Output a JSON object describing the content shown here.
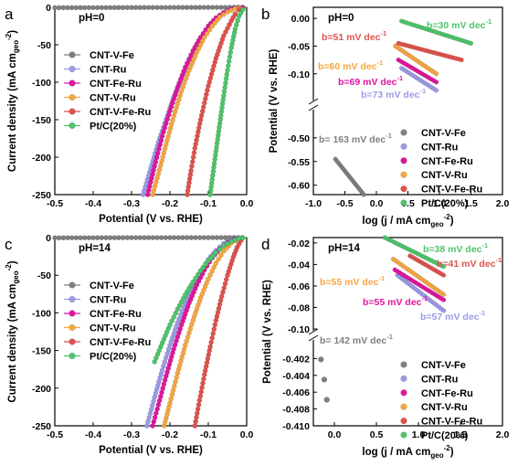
{
  "figure": {
    "series_names": [
      "CNT-V-Fe",
      "CNT-Ru",
      "CNT-Fe-Ru",
      "CNT-V-Ru",
      "CNT-V-Fe-Ru",
      "Pt/C(20%)"
    ],
    "colors": [
      "#7f7f7f",
      "#9b9be8",
      "#e0169e",
      "#f5a742",
      "#e0524c",
      "#4fc46b"
    ]
  },
  "chart_data": [
    {
      "panel": "a",
      "type": "line",
      "annotation": "pH=0",
      "xlabel": "Potential  (V vs. RHE)",
      "ylabel": "Current density (mA cm",
      "ylabel_sub": "geo",
      "ylabel_tail": "-2",
      "ylabel_end": ")",
      "xlim": [
        -0.5,
        0.0
      ],
      "ylim": [
        -250,
        0
      ],
      "xticks": [
        "-0.5",
        "-0.4",
        "-0.3",
        "-0.2",
        "-0.1",
        "0.0"
      ],
      "yticks": [
        "-250",
        "-200",
        "-150",
        "-100",
        "-50",
        "0"
      ],
      "xtick_values": [
        -0.5,
        -0.4,
        -0.3,
        -0.2,
        -0.1,
        0.0
      ],
      "ytick_values": [
        -250,
        -200,
        -150,
        -100,
        -50,
        0
      ],
      "series": [
        {
          "name": "CNT-V-Fe",
          "x": [
            -0.5,
            -0.4,
            -0.3,
            -0.2,
            -0.1,
            0.0
          ],
          "y": [
            -0.5,
            -0.4,
            -0.3,
            -0.2,
            -0.1,
            0
          ]
        },
        {
          "name": "CNT-Ru",
          "x": [
            -0.27,
            -0.25,
            -0.23,
            -0.21,
            -0.19,
            -0.17,
            -0.15,
            -0.13,
            -0.11,
            -0.09,
            -0.07,
            -0.05,
            -0.03,
            -0.01
          ],
          "y": [
            -250,
            -215,
            -180,
            -150,
            -120,
            -95,
            -72,
            -52,
            -35,
            -21,
            -11,
            -4,
            -1,
            0
          ]
        },
        {
          "name": "CNT-Fe-Ru",
          "x": [
            -0.258,
            -0.24,
            -0.22,
            -0.2,
            -0.18,
            -0.16,
            -0.14,
            -0.12,
            -0.1,
            -0.08,
            -0.06,
            -0.04,
            -0.02,
            0.0
          ],
          "y": [
            -250,
            -212,
            -172,
            -138,
            -107,
            -80,
            -58,
            -40,
            -25,
            -14,
            -7,
            -2.5,
            -0.5,
            0
          ]
        },
        {
          "name": "CNT-V-Ru",
          "x": [
            -0.245,
            -0.23,
            -0.21,
            -0.19,
            -0.17,
            -0.15,
            -0.13,
            -0.11,
            -0.09,
            -0.07,
            -0.05,
            -0.03,
            -0.01
          ],
          "y": [
            -250,
            -222,
            -183,
            -145,
            -112,
            -84,
            -60,
            -40,
            -25,
            -13,
            -6,
            -2,
            0
          ]
        },
        {
          "name": "CNT-V-Fe-Ru",
          "x": [
            -0.155,
            -0.145,
            -0.135,
            -0.12,
            -0.1,
            -0.08,
            -0.06,
            -0.04,
            -0.03,
            -0.02,
            -0.01
          ],
          "y": [
            -250,
            -218,
            -188,
            -150,
            -105,
            -68,
            -38,
            -18,
            -9,
            -3,
            0
          ]
        },
        {
          "name": "Pt/C(20%)",
          "x": [
            -0.095,
            -0.09,
            -0.08,
            -0.07,
            -0.06,
            -0.05,
            -0.04,
            -0.03,
            -0.02,
            -0.01,
            0.0
          ],
          "y": [
            -250,
            -230,
            -192,
            -155,
            -118,
            -84,
            -54,
            -29,
            -12,
            -3,
            0
          ]
        }
      ],
      "legend": "middle-left"
    },
    {
      "panel": "b",
      "type": "scatter",
      "annotation": "pH=0",
      "xlabel": "log (j / mA cm",
      "xlabel_sub": "geo",
      "xlabel_tail": "-2",
      "xlabel_end": ")",
      "ylabel": "Potential  (V vs. RHE)",
      "xlim": [
        -1.0,
        2.0
      ],
      "ylim": [
        -0.62,
        0.02
      ],
      "axis_break": [
        -0.14,
        -0.45
      ],
      "xticks": [
        "-1.0",
        "-0.5",
        "0.0",
        "0.5",
        "1.0",
        "1.5",
        "2.0"
      ],
      "yticks": [
        "-0.60",
        "-0.55",
        "-0.50",
        "-0.10",
        "-0.05",
        "0.00"
      ],
      "xtick_values": [
        -1.0,
        -0.5,
        0.0,
        0.5,
        1.0,
        1.5,
        2.0
      ],
      "ytick_values": [
        -0.6,
        -0.55,
        -0.5,
        -0.1,
        -0.05,
        0.0
      ],
      "series": [
        {
          "name": "CNT-V-Fe",
          "x": [
            -0.65,
            -0.2
          ],
          "y": [
            -0.545,
            -0.62
          ],
          "tafel": "b= 163 mV dec"
        },
        {
          "name": "CNT-Ru",
          "x": [
            0.4,
            0.95
          ],
          "y": [
            -0.09,
            -0.13
          ],
          "tafel": "b=73 mV dec"
        },
        {
          "name": "CNT-Fe-Ru",
          "x": [
            0.35,
            0.95
          ],
          "y": [
            -0.075,
            -0.115
          ],
          "tafel": "b=69 mV dec"
        },
        {
          "name": "CNT-V-Ru",
          "x": [
            0.3,
            0.95
          ],
          "y": [
            -0.05,
            -0.1
          ],
          "tafel": "b=60 mV dec"
        },
        {
          "name": "CNT-V-Fe-Ru",
          "x": [
            0.35,
            1.35
          ],
          "y": [
            -0.045,
            -0.075
          ],
          "tafel": "b=51 mV dec"
        },
        {
          "name": "Pt/C(20%)",
          "x": [
            0.4,
            1.5
          ],
          "y": [
            -0.005,
            -0.045
          ],
          "tafel": "b=30 mV dec"
        }
      ],
      "legend": "bottom-right"
    },
    {
      "panel": "c",
      "type": "line",
      "annotation": "pH=14",
      "xlabel": "Potential  (V vs. RHE)",
      "ylabel": "Current density (mA cm",
      "ylabel_sub": "geo",
      "ylabel_tail": "-2",
      "ylabel_end": ")",
      "xlim": [
        -0.5,
        0.0
      ],
      "ylim": [
        -250,
        0
      ],
      "xticks": [
        "-0.5",
        "-0.4",
        "-0.3",
        "-0.2",
        "-0.1",
        "0.0"
      ],
      "yticks": [
        "-250",
        "-200",
        "-150",
        "-100",
        "-50",
        "0"
      ],
      "xtick_values": [
        -0.5,
        -0.4,
        -0.3,
        -0.2,
        -0.1,
        0.0
      ],
      "ytick_values": [
        -250,
        -200,
        -150,
        -100,
        -50,
        0
      ],
      "series": [
        {
          "name": "CNT-V-Fe",
          "x": [
            -0.5,
            -0.4,
            -0.3,
            -0.2,
            -0.1,
            0.0
          ],
          "y": [
            -0.3,
            -0.2,
            -0.1,
            -0.05,
            0,
            0
          ]
        },
        {
          "name": "CNT-Ru",
          "x": [
            -0.26,
            -0.24,
            -0.22,
            -0.2,
            -0.18,
            -0.16,
            -0.14,
            -0.12,
            -0.1,
            -0.08,
            -0.06,
            -0.04,
            -0.02,
            0.0
          ],
          "y": [
            -250,
            -212,
            -176,
            -143,
            -113,
            -87,
            -64,
            -45,
            -29,
            -17,
            -8,
            -3,
            -0.5,
            0
          ]
        },
        {
          "name": "CNT-Fe-Ru",
          "x": [
            -0.245,
            -0.23,
            -0.21,
            -0.19,
            -0.17,
            -0.15,
            -0.13,
            -0.11,
            -0.09,
            -0.07,
            -0.05,
            -0.03,
            -0.01
          ],
          "y": [
            -250,
            -222,
            -184,
            -148,
            -116,
            -87,
            -63,
            -43,
            -27,
            -15,
            -7,
            -2,
            0
          ]
        },
        {
          "name": "CNT-V-Ru",
          "x": [
            -0.215,
            -0.2,
            -0.18,
            -0.16,
            -0.14,
            -0.12,
            -0.1,
            -0.08,
            -0.06,
            -0.04,
            -0.02,
            -0.01
          ],
          "y": [
            -250,
            -220,
            -180,
            -143,
            -110,
            -80,
            -55,
            -34,
            -18,
            -7,
            -1.5,
            0
          ]
        },
        {
          "name": "CNT-V-Fe-Ru",
          "x": [
            -0.135,
            -0.125,
            -0.11,
            -0.095,
            -0.08,
            -0.065,
            -0.05,
            -0.035,
            -0.025,
            -0.015,
            -0.005
          ],
          "y": [
            -250,
            -222,
            -182,
            -145,
            -110,
            -78,
            -50,
            -26,
            -13,
            -4,
            0
          ]
        },
        {
          "name": "Pt/C(20%)",
          "x": [
            -0.24,
            -0.22,
            -0.2,
            -0.18,
            -0.16,
            -0.14,
            -0.12,
            -0.1,
            -0.08,
            -0.06,
            -0.04,
            -0.02,
            0.0
          ],
          "y": [
            -165,
            -140,
            -116,
            -95,
            -76,
            -59,
            -44,
            -31,
            -20,
            -11,
            -5,
            -1,
            0
          ]
        }
      ],
      "legend": "middle-left"
    },
    {
      "panel": "d",
      "type": "scatter",
      "annotation": "pH=14",
      "xlabel": "log (j / mA cm",
      "xlabel_sub": "geo",
      "xlabel_tail": "-2",
      "xlabel_end": ")",
      "ylabel": "Potential  (V vs. RHE)",
      "xlim": [
        -0.25,
        2.0
      ],
      "ylim": [
        -0.41,
        -0.015
      ],
      "axis_break": [
        -0.1,
        -0.4
      ],
      "xticks": [
        "0.0",
        "0.5",
        "1.0",
        "1.5",
        "2.0"
      ],
      "yticks": [
        "-0.410",
        "-0.408",
        "-0.406",
        "-0.404",
        "-0.402",
        "-0.10",
        "-0.08",
        "-0.06",
        "-0.04",
        "-0.02"
      ],
      "xtick_values": [
        0.0,
        0.5,
        1.0,
        1.5,
        2.0
      ],
      "ytick_values": [
        -0.41,
        -0.408,
        -0.406,
        -0.404,
        -0.402,
        -0.1,
        -0.08,
        -0.06,
        -0.04,
        -0.02
      ],
      "series": [
        {
          "name": "CNT-V-Fe",
          "x": [
            -0.16,
            -0.12,
            -0.09
          ],
          "y": [
            -0.4021,
            -0.4045,
            -0.4069
          ],
          "tafel": "b= 142 mV dec"
        },
        {
          "name": "CNT-Ru",
          "x": [
            0.75,
            1.3
          ],
          "y": [
            -0.05,
            -0.083
          ],
          "tafel": "b=57 mV dec"
        },
        {
          "name": "CNT-Fe-Ru",
          "x": [
            0.72,
            1.3
          ],
          "y": [
            -0.045,
            -0.073
          ],
          "tafel": "b=55 mV dec"
        },
        {
          "name": "CNT-V-Ru",
          "x": [
            0.7,
            1.3
          ],
          "y": [
            -0.035,
            -0.068
          ],
          "tafel": "b=55 mV dec"
        },
        {
          "name": "CNT-V-Fe-Ru",
          "x": [
            0.9,
            1.3
          ],
          "y": [
            -0.032,
            -0.05
          ],
          "tafel": "b=41 mV dec"
        },
        {
          "name": "Pt/C(20%)",
          "x": [
            0.6,
            1.3
          ],
          "y": [
            -0.015,
            -0.042
          ],
          "tafel": "b=38 mV dec"
        }
      ],
      "legend": "bottom-right"
    }
  ]
}
